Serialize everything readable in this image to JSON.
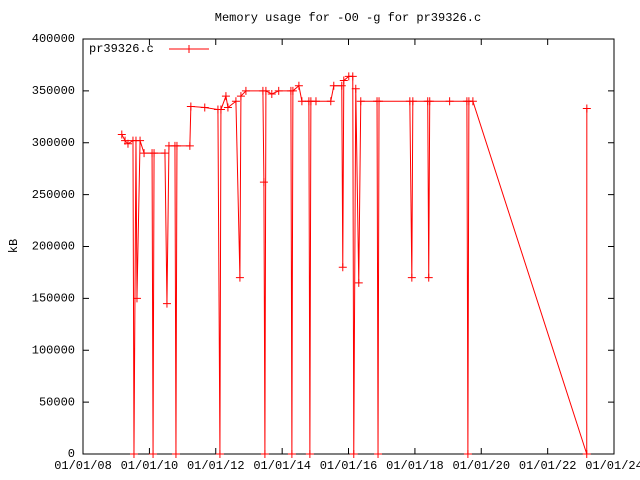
{
  "chart_data": {
    "type": "line",
    "title": "Memory usage for -O0 -g for pr39326.c",
    "y_label": "kB",
    "x": [
      "03/03/09",
      "04/08/09",
      "05/10/09",
      "07/04/09",
      "07/15/09",
      "08/06/09",
      "08/17/09",
      "09/20/09",
      "11/03/09",
      "01/30/10",
      "02/10/10",
      "02/21/10",
      "06/21/10",
      "07/13/10",
      "08/04/10",
      "10/09/10",
      "10/20/10",
      "10/31/10",
      "03/22/11",
      "04/02/11",
      "09/02/11",
      "01/25/12",
      "02/16/12",
      "02/27/12",
      "04/22/12",
      "05/14/12",
      "08/10/12",
      "09/23/12",
      "10/04/12",
      "11/28/12",
      "06/03/13",
      "06/14/13",
      "06/25/13",
      "07/06/13",
      "09/09/13",
      "11/24/13",
      "04/07/14",
      "04/18/14",
      "04/29/14",
      "07/04/14",
      "08/06/14",
      "10/22/14",
      "11/02/14",
      "11/13/14",
      "01/08/15",
      "06/20/15",
      "07/23/15",
      "10/19/15",
      "10/30/15",
      "11/10/15",
      "01/04/16",
      "02/17/16",
      "02/28/16",
      "03/21/16",
      "04/23/16",
      "05/15/16",
      "11/10/16",
      "11/21/16",
      "12/02/16",
      "11/06/17",
      "11/28/17",
      "12/09/17",
      "05/22/18",
      "06/02/18",
      "06/13/18",
      "01/18/19",
      "07/27/19",
      "08/07/19",
      "08/18/19",
      "10/01/19",
      "03/07/23",
      "03/08/23"
    ],
    "series": [
      {
        "name": "pr39326.c",
        "color": "#ff0000",
        "values": [
          308000,
          302000,
          299000,
          302000,
          0,
          302000,
          150000,
          302000,
          290000,
          290000,
          0,
          290000,
          290000,
          145000,
          297000,
          297000,
          0,
          297000,
          297000,
          335000,
          334000,
          332000,
          0,
          332000,
          345000,
          334000,
          340000,
          170000,
          345000,
          350000,
          350000,
          262000,
          0,
          350000,
          347000,
          350000,
          350000,
          0,
          350000,
          355000,
          340000,
          340000,
          0,
          340000,
          340000,
          340000,
          355000,
          355000,
          180000,
          360000,
          364000,
          364000,
          0,
          352000,
          165000,
          340000,
          340000,
          0,
          340000,
          340000,
          170000,
          340000,
          340000,
          170000,
          340000,
          340000,
          340000,
          0,
          340000,
          340000,
          0,
          333000
        ]
      }
    ],
    "xlim": [
      "01/01/08",
      "01/01/24"
    ],
    "xticks": [
      "01/01/08",
      "01/01/10",
      "01/01/12",
      "01/01/14",
      "01/01/16",
      "01/01/18",
      "01/01/20",
      "01/01/22",
      "01/01/24"
    ],
    "ylim": [
      0,
      400000
    ],
    "yticks": [
      0,
      50000,
      100000,
      150000,
      200000,
      250000,
      300000,
      350000,
      400000
    ],
    "legend": "top-left"
  }
}
